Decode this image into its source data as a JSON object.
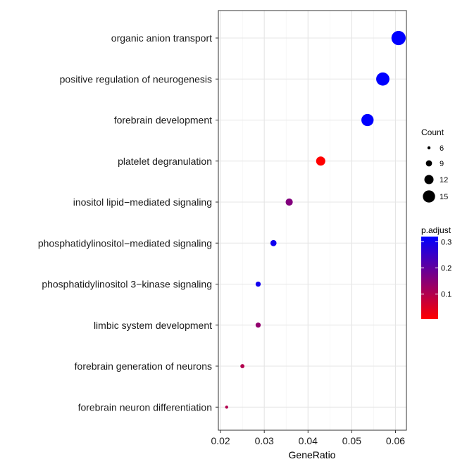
{
  "chart_data": {
    "type": "scatter",
    "xlabel": "GeneRatio",
    "ylabel": "",
    "xlim": [
      0.0195,
      0.0625
    ],
    "x_ticks": [
      0.02,
      0.03,
      0.04,
      0.05,
      0.06
    ],
    "x_tick_labels": [
      "0.02",
      "0.03",
      "0.04",
      "0.05",
      "0.06"
    ],
    "grid": true,
    "legend_placement": "right",
    "categories": [
      "organic anion transport",
      "positive regulation of neurogenesis",
      "forebrain development",
      "platelet degranulation",
      "inositol lipid−mediated signaling",
      "phosphatidylinositol−mediated signaling",
      "phosphatidylinositol 3−kinase signaling",
      "limbic system development",
      "forebrain generation of neurons",
      "forebrain neuron differentiation"
    ],
    "points": [
      {
        "term": "organic anion transport",
        "gene_ratio": 0.0607,
        "count": 17,
        "p_adjust": 0.32
      },
      {
        "term": "positive regulation of neurogenesis",
        "gene_ratio": 0.0571,
        "count": 16,
        "p_adjust": 0.32
      },
      {
        "term": "forebrain development",
        "gene_ratio": 0.0536,
        "count": 15,
        "p_adjust": 0.32
      },
      {
        "term": "platelet degranulation",
        "gene_ratio": 0.0429,
        "count": 12,
        "p_adjust": 0.005
      },
      {
        "term": "inositol lipid−mediated signaling",
        "gene_ratio": 0.0357,
        "count": 10,
        "p_adjust": 0.16
      },
      {
        "term": "phosphatidylinositol−mediated signaling",
        "gene_ratio": 0.0321,
        "count": 9,
        "p_adjust": 0.3
      },
      {
        "term": "phosphatidylinositol 3−kinase signaling",
        "gene_ratio": 0.0286,
        "count": 8,
        "p_adjust": 0.3
      },
      {
        "term": "limbic system development",
        "gene_ratio": 0.0286,
        "count": 8,
        "p_adjust": 0.14
      },
      {
        "term": "forebrain generation of neurons",
        "gene_ratio": 0.025,
        "count": 7,
        "p_adjust": 0.1
      },
      {
        "term": "forebrain neuron differentiation",
        "gene_ratio": 0.0214,
        "count": 6,
        "p_adjust": 0.1
      }
    ],
    "size_legend": {
      "title": "Count",
      "values": [
        6,
        9,
        12,
        15
      ],
      "labels": [
        "6",
        "9",
        "12",
        "15"
      ]
    },
    "color_legend": {
      "title": "p.adjust",
      "min": 0.005,
      "max": 0.32,
      "ticks": [
        0.1,
        0.2,
        0.3
      ],
      "tick_labels": [
        "0.1",
        "0.2",
        "0.3"
      ],
      "low_color": "#ff0000",
      "high_color": "#0000ff"
    },
    "colors": {
      "panel_border": "#333333",
      "grid_major": "#e5e5e5",
      "grid_minor": "#f2f2f2"
    }
  }
}
